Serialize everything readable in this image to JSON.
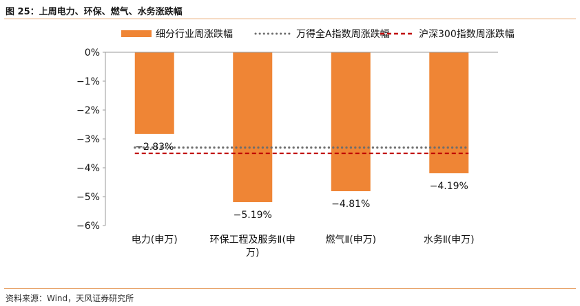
{
  "figure": {
    "title": "图 25：上周电力、环保、燃气、水务涨跌幅",
    "source": "资料来源：Wind，天风证券研究所"
  },
  "colors": {
    "bar": "#ef8535",
    "wind_all_a": "#6d6d6d",
    "csi300": "#c00000",
    "accent_rule": "#e8a36a"
  },
  "chart_data": {
    "type": "bar",
    "title": "",
    "xlabel": "",
    "ylabel": "",
    "categories": [
      "电力(申万)",
      "环保工程及服务Ⅱ(申万)",
      "燃气Ⅱ(申万)",
      "水务Ⅱ(申万)"
    ],
    "series": [
      {
        "name": "细分行业周涨跌幅",
        "kind": "bar",
        "values": [
          -2.83,
          -5.19,
          -4.81,
          -4.19
        ],
        "labels": [
          "−2.83%",
          "−5.19%",
          "−4.81%",
          "−4.19%"
        ]
      },
      {
        "name": "万得全A指数周涨跌幅",
        "kind": "dotted-line",
        "value": -3.3
      },
      {
        "name": "沪深300指数周涨跌幅",
        "kind": "dashed-line",
        "value": -3.5
      }
    ],
    "ylim": [
      -6,
      0
    ],
    "yticks": [
      0,
      -1,
      -2,
      -3,
      -4,
      -5,
      -6
    ],
    "ytick_labels": [
      "0%",
      "−1%",
      "−2%",
      "−3%",
      "−4%",
      "−5%",
      "−6%"
    ],
    "grid": false,
    "legend": "top-center"
  }
}
